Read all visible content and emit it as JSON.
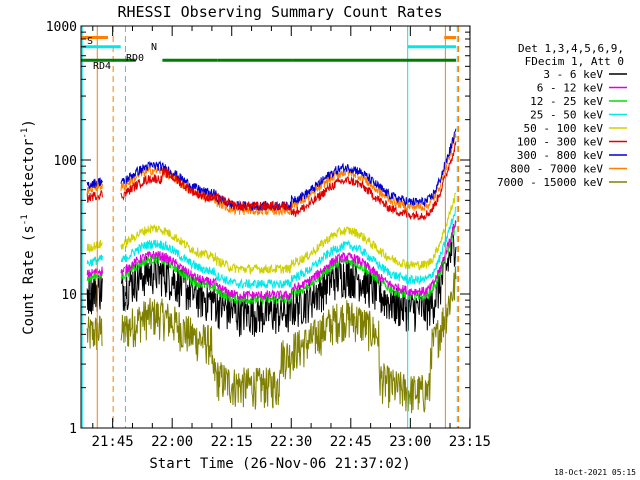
{
  "chart_data": {
    "type": "line",
    "title": "RHESSI Observing Summary Count Rates",
    "xlabel": "Start Time (26-Nov-06 21:37:02)",
    "ylabel_main": "Count Rate (s",
    "ylabel_sup1": "-1",
    "ylabel_mid": " detector",
    "ylabel_sup2": "-1",
    "ylabel_end": ")",
    "y_scale": "log",
    "ylim": [
      1,
      1000
    ],
    "xlim_minutes": [
      0,
      98
    ],
    "x_ticks": [
      {
        "label": "21:45",
        "minutes": 7.97
      },
      {
        "label": "22:00",
        "minutes": 22.97
      },
      {
        "label": "22:15",
        "minutes": 37.97
      },
      {
        "label": "22:30",
        "minutes": 52.97
      },
      {
        "label": "22:45",
        "minutes": 67.97
      },
      {
        "label": "23:00",
        "minutes": 82.97
      },
      {
        "label": "23:15",
        "minutes": 97.97
      }
    ],
    "y_ticks": [
      {
        "label": "1",
        "value": 1
      },
      {
        "label": "10",
        "value": 10
      },
      {
        "label": "100",
        "value": 100
      },
      {
        "label": "1000",
        "value": 1000
      }
    ],
    "legend_header": [
      "Det 1,3,4,5,6,9,",
      "FDecim 1, Att 0"
    ],
    "legend_placement": "right",
    "series": [
      {
        "name": "3 - 6 keV",
        "color": "#000000",
        "level": 10.5
      },
      {
        "name": "6 - 12 keV",
        "color": "#e000e0",
        "level": 14
      },
      {
        "name": "12 - 25 keV",
        "color": "#00e000",
        "level": 13
      },
      {
        "name": "25 - 50 keV",
        "color": "#00e8e8",
        "level": 17
      },
      {
        "name": "50 - 100 keV",
        "color": "#d0d000",
        "level": 22
      },
      {
        "name": "100 - 300 keV",
        "color": "#e00000",
        "level": 52
      },
      {
        "name": "300 - 800 keV",
        "color": "#0000d0",
        "level": 65
      },
      {
        "name": "800 - 7000 keV",
        "color": "#ff8000",
        "level": 60
      },
      {
        "name": "7000 - 15000 keV",
        "color": "#808000",
        "level": 5
      }
    ],
    "flags": [
      {
        "label": "S",
        "color": "#ff8000",
        "y_value": 820,
        "segments": [
          [
            0,
            6.8
          ],
          [
            91.5,
            94.5
          ]
        ]
      },
      {
        "label": "N",
        "color": "#00e8e8",
        "y_value": 700,
        "segments": [
          [
            0,
            10
          ],
          [
            82.3,
            94.5
          ]
        ]
      },
      {
        "label": "RD0",
        "color": "#008000",
        "y_value": 555,
        "segments": [
          [
            0,
            13.8
          ],
          [
            20.5,
            34.3
          ],
          [
            34.3,
            53.3
          ],
          [
            53.3,
            80.5
          ],
          [
            80.5,
            94.5
          ]
        ]
      },
      {
        "label": "RD4",
        "color": "#008000",
        "y_value": 555,
        "segments": []
      }
    ],
    "vertical_markers": [
      {
        "minutes": 0.3,
        "color": "#00e8e8",
        "style": "solid"
      },
      {
        "minutes": 4.1,
        "color": "#ff8000",
        "style": "solid"
      },
      {
        "minutes": 8.1,
        "color": "#ff8000",
        "style": "dashed"
      },
      {
        "minutes": 11.2,
        "color": "#00e8e8",
        "style": "dashed"
      },
      {
        "minutes": 82.3,
        "color": "#00e8e8",
        "style": "solid"
      },
      {
        "minutes": 91.8,
        "color": "#ff8000",
        "style": "solid"
      },
      {
        "minutes": 94.8,
        "color": "#00e8e8",
        "style": "dashed"
      },
      {
        "minutes": 95.1,
        "color": "#ff8000",
        "style": "dashed"
      }
    ],
    "grid": false
  },
  "footer_timestamp": "18-Oct-2021 05:15"
}
